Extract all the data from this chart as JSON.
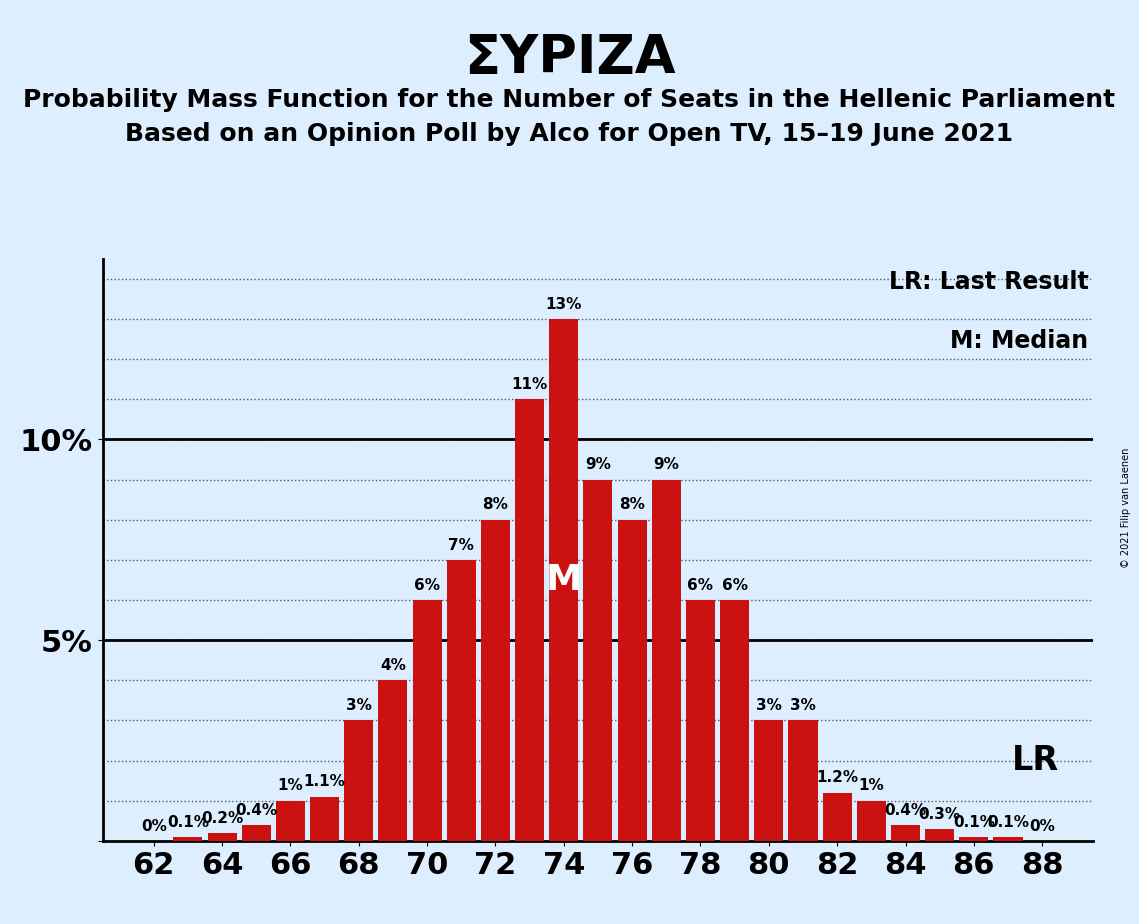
{
  "title": "ΣΥΡΙΖΑ",
  "subtitle1": "Probability Mass Function for the Number of Seats in the Hellenic Parliament",
  "subtitle2": "Based on an Opinion Poll by Alco for Open TV, 15–19 June 2021",
  "copyright": "© 2021 Filip van Laenen",
  "seats": [
    62,
    63,
    64,
    65,
    66,
    67,
    68,
    69,
    70,
    71,
    72,
    73,
    74,
    75,
    76,
    77,
    78,
    79,
    80,
    81,
    82,
    83,
    84,
    85,
    86,
    87,
    88
  ],
  "probabilities": [
    0.0,
    0.1,
    0.2,
    0.4,
    1.0,
    1.1,
    3.0,
    4.0,
    6.0,
    7.0,
    8.0,
    11.0,
    13.0,
    9.0,
    8.0,
    9.0,
    6.0,
    6.0,
    3.0,
    3.0,
    1.2,
    1.0,
    0.4,
    0.3,
    0.1,
    0.1,
    0.0
  ],
  "bar_color": "#cc1111",
  "background_color": "#ddeeff",
  "median_seat": 74,
  "lr_seat": 86,
  "xlabel_seats": [
    62,
    64,
    66,
    68,
    70,
    72,
    74,
    76,
    78,
    80,
    82,
    84,
    86,
    88
  ],
  "title_fontsize": 38,
  "subtitle_fontsize": 18,
  "axis_tick_fontsize": 22,
  "bar_label_fontsize": 11,
  "legend_fontsize": 17,
  "median_label_fontsize": 26,
  "lr_label_fontsize": 24,
  "ylim_max": 14.5
}
